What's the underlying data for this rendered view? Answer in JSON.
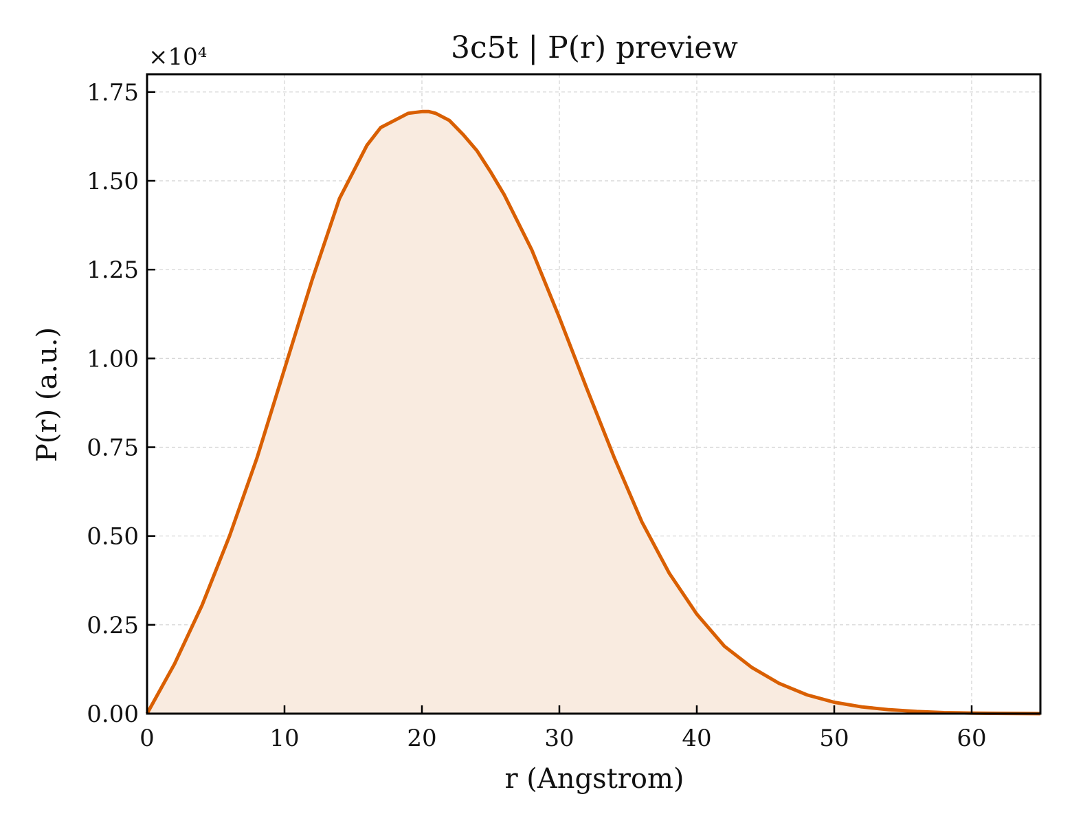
{
  "chart_data": {
    "type": "area",
    "title": "3c5t | P(r) preview",
    "xlabel": "r (Angstrom)",
    "ylabel": "P(r) (a.u.)",
    "y_multiplier_label": "×10⁴",
    "xlim": [
      0,
      65
    ],
    "ylim": [
      0,
      18000
    ],
    "x_ticks": [
      0,
      10,
      20,
      30,
      40,
      50,
      60
    ],
    "x_tick_labels": [
      "0",
      "10",
      "20",
      "30",
      "40",
      "50",
      "60"
    ],
    "y_ticks": [
      0,
      2500,
      5000,
      7500,
      10000,
      12500,
      15000,
      17500
    ],
    "y_tick_labels": [
      "0.00",
      "0.25",
      "0.50",
      "0.75",
      "1.00",
      "1.25",
      "1.50",
      "1.75"
    ],
    "grid": true,
    "line_color": "#d95f02",
    "fill_color": "#f9ebe0",
    "series": [
      {
        "x": [
          0,
          2,
          4,
          6,
          8,
          10,
          12,
          14,
          16,
          17,
          18,
          19,
          20,
          20.5,
          21,
          22,
          23,
          24,
          25,
          26,
          28,
          30,
          32,
          34,
          36,
          38,
          40,
          42,
          44,
          46,
          48,
          50,
          52,
          54,
          56,
          58,
          60,
          62,
          65
        ],
        "y": [
          0,
          1400,
          3050,
          5000,
          7200,
          9700,
          12200,
          14500,
          16000,
          16500,
          16700,
          16900,
          16950,
          16950,
          16900,
          16700,
          16300,
          15850,
          15250,
          14600,
          13050,
          11150,
          9150,
          7200,
          5400,
          3950,
          2800,
          1900,
          1300,
          850,
          530,
          320,
          190,
          110,
          60,
          30,
          15,
          8,
          0
        ]
      }
    ]
  }
}
